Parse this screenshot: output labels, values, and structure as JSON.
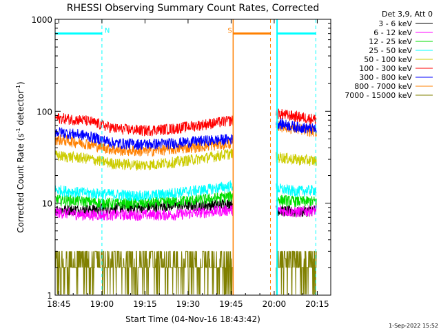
{
  "chart_data": {
    "type": "line",
    "title": "RHESSI Observing Summary Count Rates, Corrected",
    "xlabel": "Start Time (04-Nov-16 18:43:42)",
    "ylabel_main": "Corrected Count Rate (s",
    "ylabel_sup1": "-1",
    "ylabel_mid": " detector",
    "ylabel_sup2": "-1",
    "ylabel_end": ")",
    "yscale": "log",
    "ylim": [
      1,
      1000
    ],
    "xlim_minutes": [
      0,
      96
    ],
    "x_ticks": [
      {
        "label": "18:45",
        "minute": 1.3
      },
      {
        "label": "19:00",
        "minute": 16.3
      },
      {
        "label": "19:15",
        "minute": 31.3
      },
      {
        "label": "19:30",
        "minute": 46.3
      },
      {
        "label": "19:45",
        "minute": 61.3
      },
      {
        "label": "20:00",
        "minute": 76.3
      },
      {
        "label": "20:15",
        "minute": 91.3
      }
    ],
    "y_ticks": [
      {
        "label": "1",
        "value": 1
      },
      {
        "label": "10",
        "value": 10
      },
      {
        "label": "100",
        "value": 100
      },
      {
        "label": "1000",
        "value": 1000
      }
    ],
    "legend": {
      "title": "Det 3,9, Att 0",
      "placement": "right",
      "entries": [
        {
          "label": "3 - 6 keV",
          "color": "#000000"
        },
        {
          "label": "6 - 12 keV",
          "color": "#ff00ff"
        },
        {
          "label": "12 - 25 keV",
          "color": "#00dd00"
        },
        {
          "label": "25 - 50 keV",
          "color": "#00ffff"
        },
        {
          "label": "50 - 100 keV",
          "color": "#cccc00"
        },
        {
          "label": "100 - 300 keV",
          "color": "#ff0000"
        },
        {
          "label": "300 - 800 keV",
          "color": "#0000ff"
        },
        {
          "label": "800 - 7000 keV",
          "color": "#ff8000"
        },
        {
          "label": "7000 - 15000 keV",
          "color": "#808000"
        }
      ]
    },
    "data_segments": [
      [
        0,
        62
      ],
      [
        77,
        91
      ]
    ],
    "series": [
      {
        "color": "#808000",
        "seg1": [
          2.5,
          2.0,
          2.0,
          2.0,
          2.5,
          3.0,
          3.0
        ],
        "seg2": [
          2.0,
          2.0,
          2.5
        ]
      },
      {
        "color": "#000000",
        "seg1": [
          8.5,
          8.5,
          9.0,
          9.0,
          9.5,
          9.5,
          10.0
        ],
        "seg2": [
          8.5,
          8.0,
          8.5
        ]
      },
      {
        "color": "#ff00ff",
        "seg1": [
          8.0,
          7.5,
          7.5,
          7.5,
          7.5,
          8.0,
          8.5
        ],
        "seg2": [
          8.5,
          8.0,
          8.5
        ]
      },
      {
        "color": "#00dd00",
        "seg1": [
          11.0,
          10.5,
          10.0,
          10.0,
          10.5,
          11.0,
          12.0
        ],
        "seg2": [
          11.0,
          10.5,
          10.5
        ]
      },
      {
        "color": "#00ffff",
        "seg1": [
          14.0,
          13.0,
          12.5,
          12.0,
          13.0,
          14.0,
          15.5
        ],
        "seg2": [
          14.5,
          13.5,
          14.0
        ]
      },
      {
        "color": "#cccc00",
        "seg1": [
          33.0,
          31.0,
          27.0,
          26.0,
          28.0,
          31.0,
          35.0
        ],
        "seg2": [
          32.0,
          30.0,
          29.0
        ]
      },
      {
        "color": "#ff8000",
        "seg1": [
          50.0,
          45.0,
          38.0,
          37.0,
          39.0,
          42.0,
          45.0
        ],
        "seg2": [
          70.0,
          65.0,
          60.0
        ]
      },
      {
        "color": "#0000ff",
        "seg1": [
          60.0,
          55.0,
          45.0,
          44.0,
          45.0,
          48.0,
          50.0
        ],
        "seg2": [
          75.0,
          68.0,
          64.0
        ]
      },
      {
        "color": "#ff0000",
        "seg1": [
          85.0,
          80.0,
          65.0,
          62.0,
          65.0,
          72.0,
          80.0
        ],
        "seg2": [
          95.0,
          88.0,
          82.0
        ]
      }
    ],
    "annotations": [
      {
        "label": "N",
        "color": "#00ffff",
        "kind": "night",
        "start": 0,
        "end": 16.3
      },
      {
        "label": "S",
        "color": "#ff8000",
        "kind": "saa",
        "start": 62,
        "end": 75
      },
      {
        "label": "",
        "color": "#00ffff",
        "kind": "night",
        "start": 77.3,
        "end": 90.8
      }
    ],
    "annotation_level": 700,
    "footer_timestamp": "1-Sep-2022 15:52"
  }
}
